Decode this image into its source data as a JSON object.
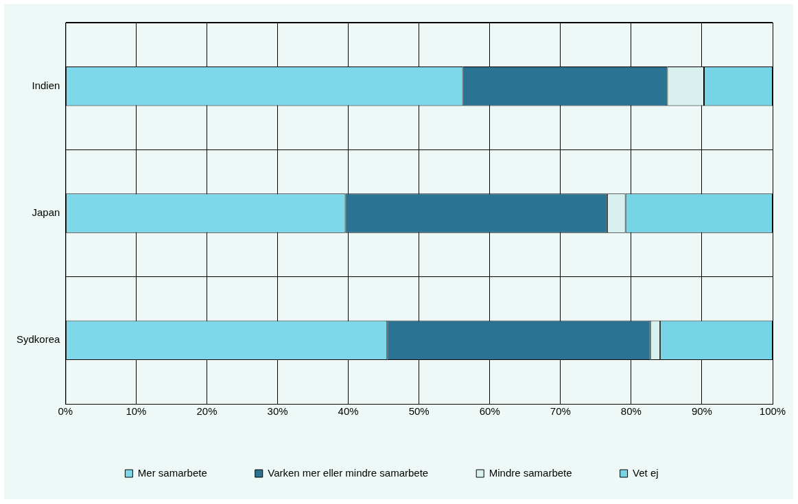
{
  "chart_data": {
    "type": "bar",
    "orientation": "horizontal",
    "stacked": true,
    "categories": [
      "Indien",
      "Japan",
      "Sydkorea"
    ],
    "series": [
      {
        "name": "Mer samarbete",
        "color": "#7fd8ea",
        "values": [
          56.2,
          39.6,
          45.5
        ]
      },
      {
        "name": "Varken mer eller mindre samarbete",
        "color": "#2b7393",
        "values": [
          28.9,
          37.0,
          37.2
        ]
      },
      {
        "name": "Mindre samarbete",
        "color": "#d8f0ee",
        "values": [
          5.2,
          2.6,
          1.4
        ]
      },
      {
        "name": "Vet ej",
        "color": "#76d4e6",
        "values": [
          9.7,
          20.8,
          15.9
        ]
      }
    ],
    "xlim": [
      0,
      100
    ],
    "xticks": [
      {
        "value": 0,
        "label": "0%"
      },
      {
        "value": 10,
        "label": "10%"
      },
      {
        "value": 20,
        "label": "20%"
      },
      {
        "value": 30,
        "label": "30%"
      },
      {
        "value": 40,
        "label": "40%"
      },
      {
        "value": 50,
        "label": "50%"
      },
      {
        "value": 60,
        "label": "60%"
      },
      {
        "value": 70,
        "label": "70%"
      },
      {
        "value": 80,
        "label": "80%"
      },
      {
        "value": 90,
        "label": "90%"
      },
      {
        "value": 100,
        "label": "100%"
      }
    ],
    "grid": true,
    "legend": "bottom"
  }
}
